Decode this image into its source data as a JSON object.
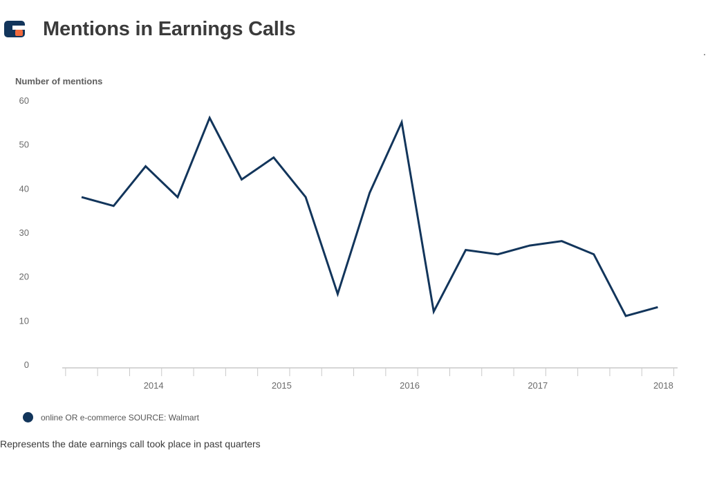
{
  "header": {
    "title": "Mentions in Earnings Calls",
    "logo_icon": "chartblocks-logo-icon"
  },
  "chart_data": {
    "type": "line",
    "ylabel": "Number of mentions",
    "ylim": [
      0,
      60
    ],
    "yticks": [
      "0",
      "10",
      "20",
      "30",
      "40",
      "50",
      "60"
    ],
    "x_tick_labels": [
      "2014",
      "2015",
      "2016",
      "2017",
      "2018"
    ],
    "x": [
      "2013 Q3",
      "2013 Q4",
      "2014 Q1",
      "2014 Q2",
      "2014 Q3",
      "2014 Q4",
      "2015 Q1",
      "2015 Q2",
      "2015 Q3",
      "2015 Q4",
      "2016 Q1",
      "2016 Q2",
      "2016 Q3",
      "2016 Q4",
      "2017 Q1",
      "2017 Q2",
      "2017 Q3",
      "2017 Q4",
      "2018 Q1"
    ],
    "series": [
      {
        "name": "online OR e-commerce SOURCE: Walmart",
        "color": "#12355b",
        "values": [
          38,
          36,
          45,
          38,
          56,
          42,
          47,
          38,
          16,
          39,
          55,
          12,
          26,
          25,
          27,
          28,
          25,
          11,
          13
        ]
      }
    ],
    "grid": false,
    "legend_position": "bottom-left"
  },
  "legend": {
    "label": "online OR e-commerce SOURCE: Walmart"
  },
  "footer": {
    "note": "Represents the date earnings call took place in past quarters"
  },
  "colors": {
    "series": "#12355b",
    "axis": "#c8c8c8",
    "title": "#3b3b3b"
  }
}
